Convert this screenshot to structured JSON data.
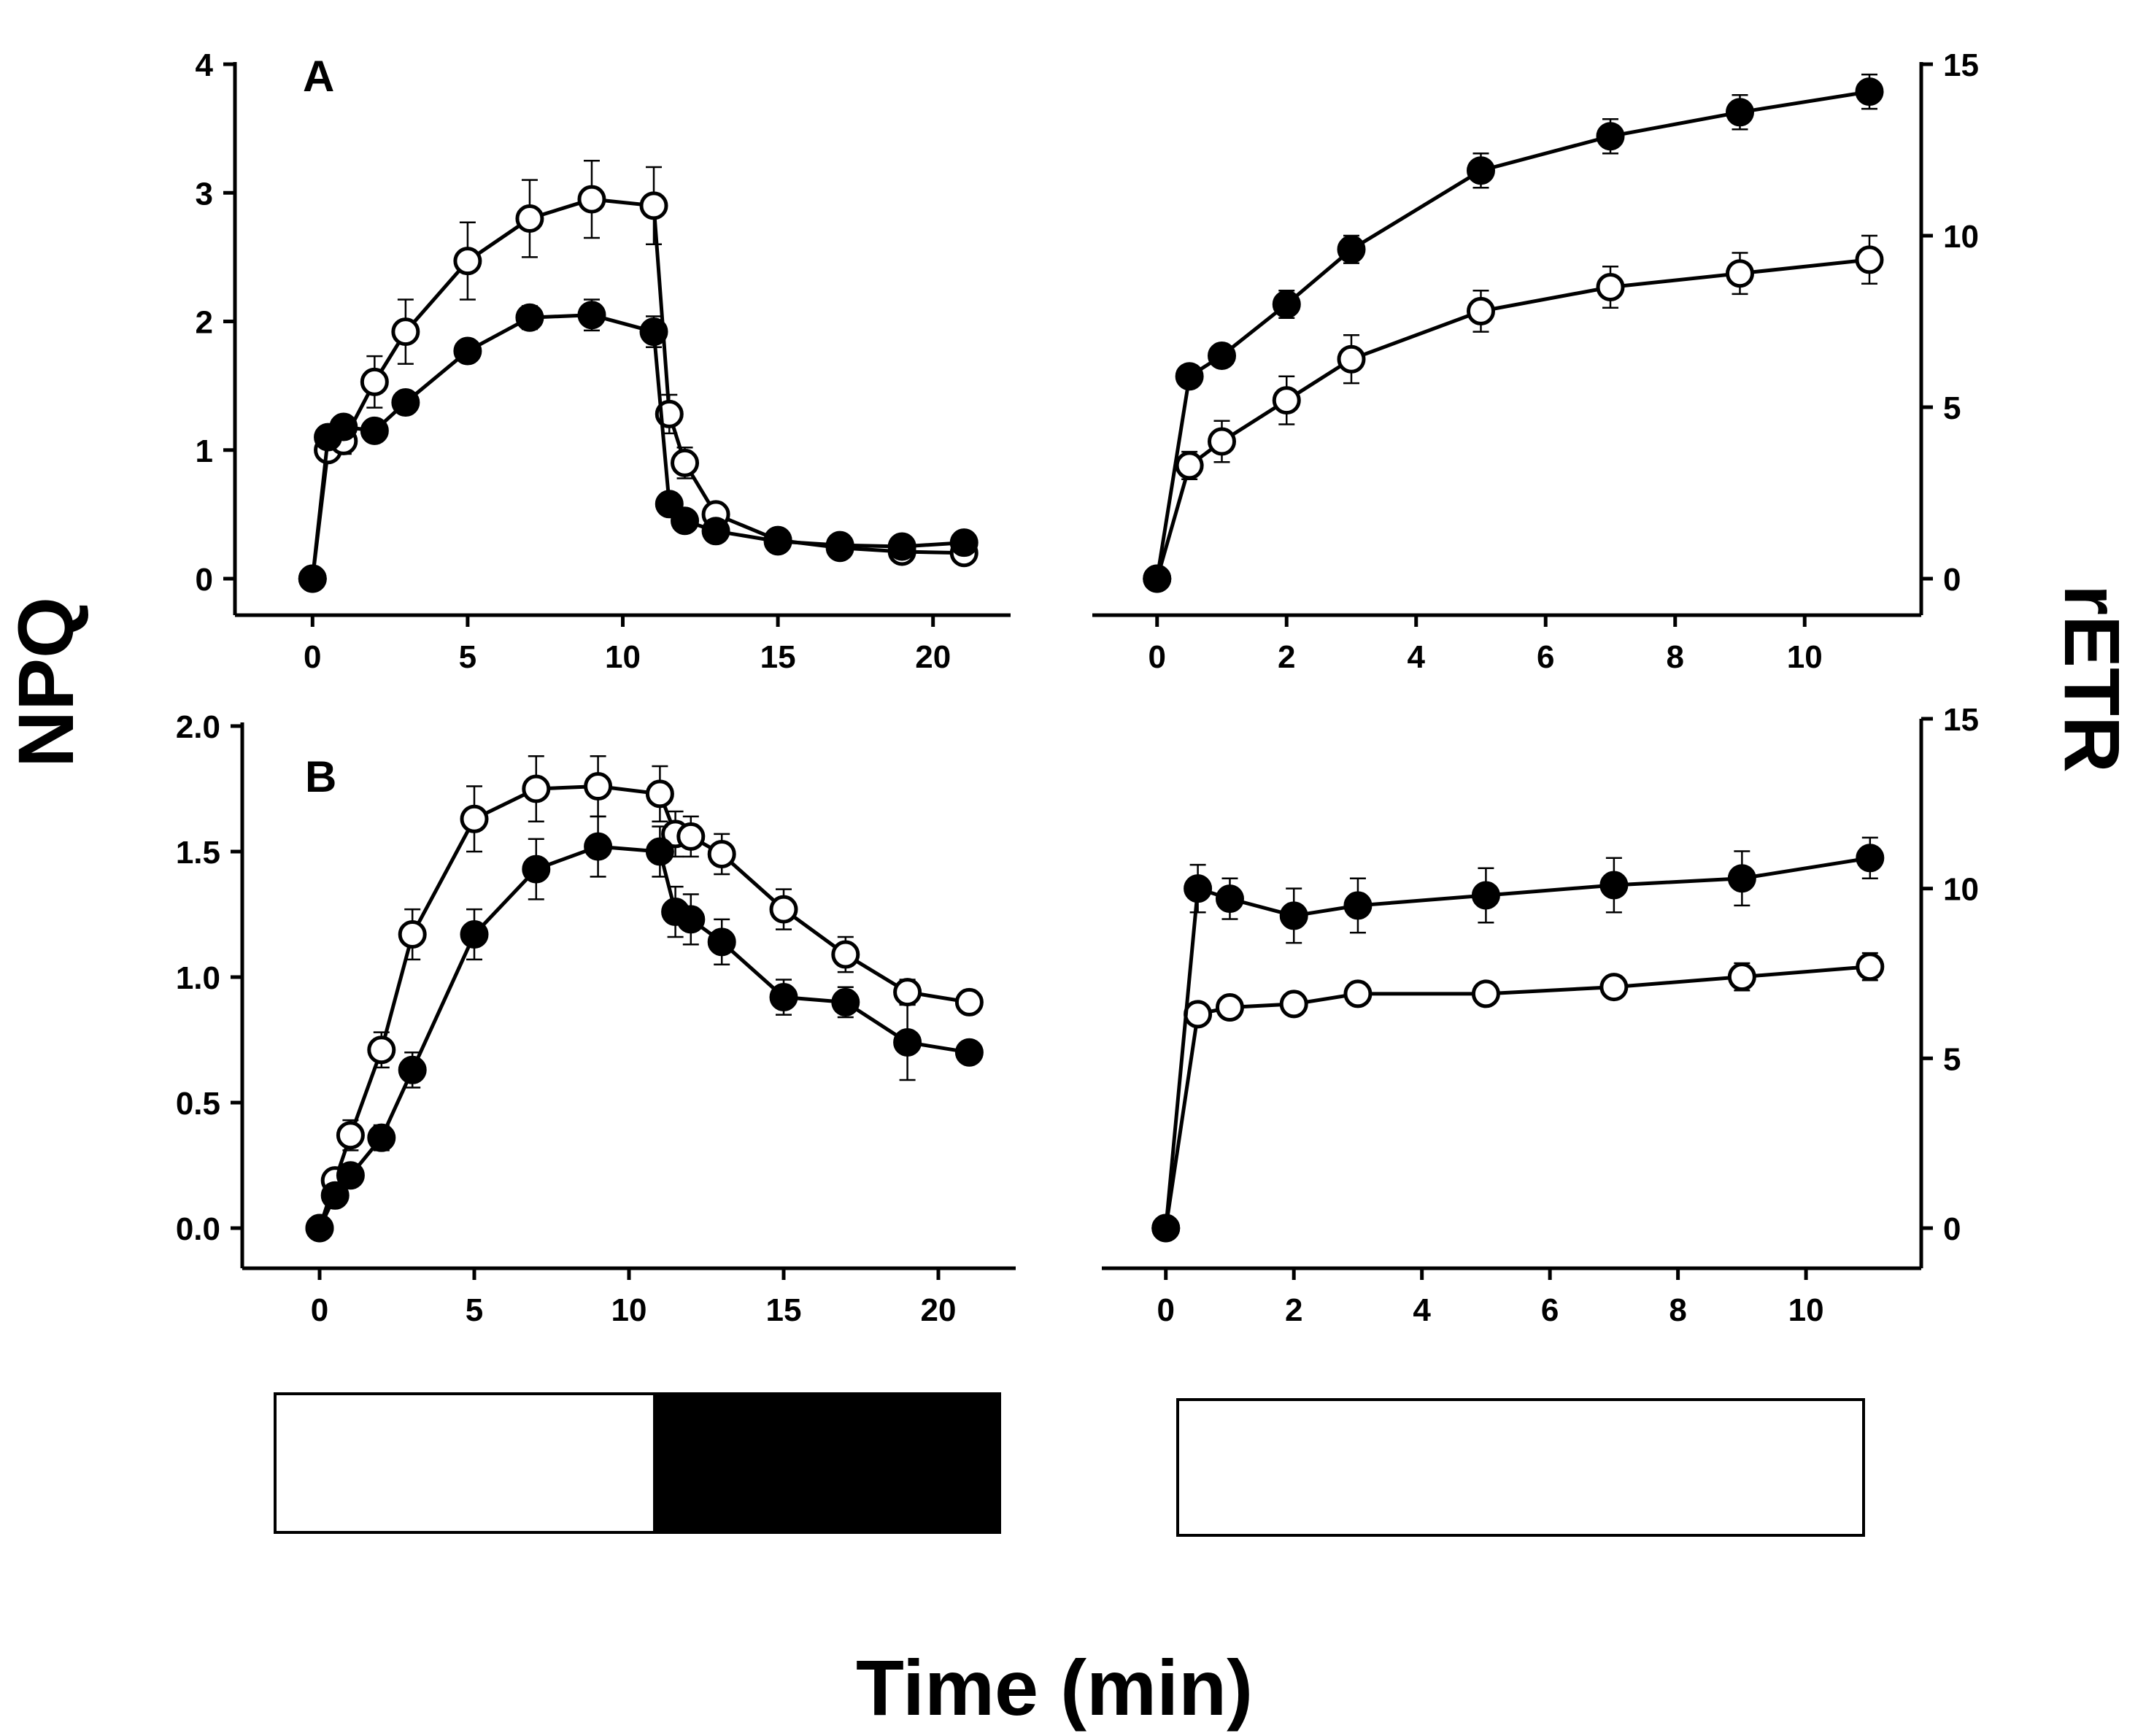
{
  "figure": {
    "ylabel_left": "NPQ",
    "ylabel_right": "rETR",
    "xlabel": "Time (min)"
  },
  "chart_data": [
    {
      "id": "A-left",
      "type": "line",
      "panel_label": "A",
      "xlabel": "",
      "ylabel": "NPQ",
      "xlim": [
        -2.5,
        22.5
      ],
      "ylim": [
        0,
        4
      ],
      "xticks": [
        "0",
        "5",
        "10",
        "15",
        "20"
      ],
      "yticks": [
        "0",
        "1",
        "2",
        "3",
        "4"
      ],
      "x": [
        0,
        0.5,
        1,
        2,
        3,
        5,
        7,
        9,
        11,
        11.5,
        12,
        13,
        15,
        17,
        19,
        21
      ],
      "series": [
        {
          "marker": "filled",
          "values": [
            0,
            1.1,
            1.18,
            1.15,
            1.37,
            1.77,
            2.03,
            2.05,
            1.92,
            0.58,
            0.45,
            0.37,
            0.29,
            0.26,
            0.25,
            0.28
          ],
          "errors": [
            0,
            0.04,
            0.05,
            0.05,
            0.06,
            0.07,
            0.09,
            0.12,
            0.12,
            0.08,
            0.06,
            0.05,
            0.04,
            0.04,
            0.04,
            0.04
          ]
        },
        {
          "marker": "open",
          "values": [
            0,
            1.0,
            1.07,
            1.53,
            1.92,
            2.47,
            2.8,
            2.95,
            2.9,
            1.28,
            0.9,
            0.5,
            0.3,
            0.24,
            0.21,
            0.2
          ],
          "errors": [
            0,
            0.08,
            0.1,
            0.2,
            0.25,
            0.3,
            0.3,
            0.3,
            0.3,
            0.15,
            0.12,
            0.08,
            0.05,
            0.04,
            0.04,
            0.04
          ]
        }
      ]
    },
    {
      "id": "A-right",
      "type": "line",
      "panel_label": "",
      "xlabel": "",
      "ylabel": "rETR",
      "xlim": [
        -1,
        11.8
      ],
      "ylim": [
        0,
        15
      ],
      "xticks": [
        "0",
        "2",
        "4",
        "6",
        "8",
        "10"
      ],
      "yticks": [
        "0",
        "5",
        "10",
        "15"
      ],
      "x": [
        0,
        0.5,
        1,
        2,
        3,
        5,
        7,
        9,
        11
      ],
      "series": [
        {
          "marker": "filled",
          "values": [
            0,
            5.9,
            6.5,
            8.0,
            9.6,
            11.9,
            12.9,
            13.6,
            14.2
          ],
          "errors": [
            0,
            0.2,
            0.3,
            0.4,
            0.4,
            0.5,
            0.5,
            0.5,
            0.5
          ]
        },
        {
          "marker": "open",
          "values": [
            0,
            3.3,
            4.0,
            5.2,
            6.4,
            7.8,
            8.5,
            8.9,
            9.3
          ],
          "errors": [
            0,
            0.4,
            0.6,
            0.7,
            0.7,
            0.6,
            0.6,
            0.6,
            0.7
          ]
        }
      ]
    },
    {
      "id": "B-left",
      "type": "line",
      "panel_label": "B",
      "xlabel": "",
      "ylabel": "NPQ",
      "xlim": [
        -2.5,
        22.5
      ],
      "ylim": [
        0,
        2
      ],
      "xticks": [
        "0",
        "5",
        "10",
        "15",
        "20"
      ],
      "yticks": [
        "0.0",
        "0.5",
        "1.0",
        "1.5",
        "2.0"
      ],
      "x": [
        0,
        0.5,
        1,
        2,
        3,
        5,
        7,
        9,
        11,
        11.5,
        12,
        13,
        15,
        17,
        19,
        21
      ],
      "series": [
        {
          "marker": "filled",
          "values": [
            0,
            0.13,
            0.21,
            0.36,
            0.63,
            1.17,
            1.43,
            1.52,
            1.5,
            1.26,
            1.23,
            1.14,
            0.92,
            0.9,
            0.74,
            0.7
          ],
          "errors": [
            0,
            0.03,
            0.04,
            0.05,
            0.07,
            0.1,
            0.12,
            0.12,
            0.1,
            0.1,
            0.1,
            0.09,
            0.07,
            0.06,
            0.15,
            0.04
          ]
        },
        {
          "marker": "open",
          "values": [
            0,
            0.19,
            0.37,
            0.71,
            1.17,
            1.63,
            1.75,
            1.76,
            1.73,
            1.57,
            1.56,
            1.49,
            1.27,
            1.09,
            0.94,
            0.9
          ],
          "errors": [
            0,
            0.04,
            0.06,
            0.07,
            0.1,
            0.13,
            0.13,
            0.12,
            0.11,
            0.09,
            0.08,
            0.08,
            0.08,
            0.07,
            0.05,
            0.04
          ]
        }
      ]
    },
    {
      "id": "B-right",
      "type": "line",
      "panel_label": "",
      "xlabel": "",
      "ylabel": "rETR",
      "xlim": [
        -1,
        11.8
      ],
      "ylim": [
        0,
        15
      ],
      "xticks": [
        "0",
        "2",
        "4",
        "6",
        "8",
        "10"
      ],
      "yticks": [
        "0",
        "5",
        "10",
        "15"
      ],
      "x": [
        0,
        0.5,
        1,
        2,
        3,
        5,
        7,
        9,
        11
      ],
      "series": [
        {
          "marker": "filled",
          "values": [
            0,
            10.0,
            9.7,
            9.2,
            9.5,
            9.8,
            10.1,
            10.3,
            10.9
          ],
          "errors": [
            0,
            0.7,
            0.6,
            0.8,
            0.8,
            0.8,
            0.8,
            0.8,
            0.6
          ]
        },
        {
          "marker": "open",
          "values": [
            0,
            6.3,
            6.5,
            6.6,
            6.9,
            6.9,
            7.1,
            7.4,
            7.7
          ],
          "errors": [
            0,
            0.3,
            0.3,
            0.3,
            0.3,
            0.3,
            0.3,
            0.4,
            0.4
          ]
        }
      ]
    }
  ],
  "light_bars": [
    {
      "id": "left",
      "light_minutes": 11,
      "dark_minutes": 10
    },
    {
      "id": "right",
      "light_minutes": 11,
      "dark_minutes": 0
    }
  ]
}
